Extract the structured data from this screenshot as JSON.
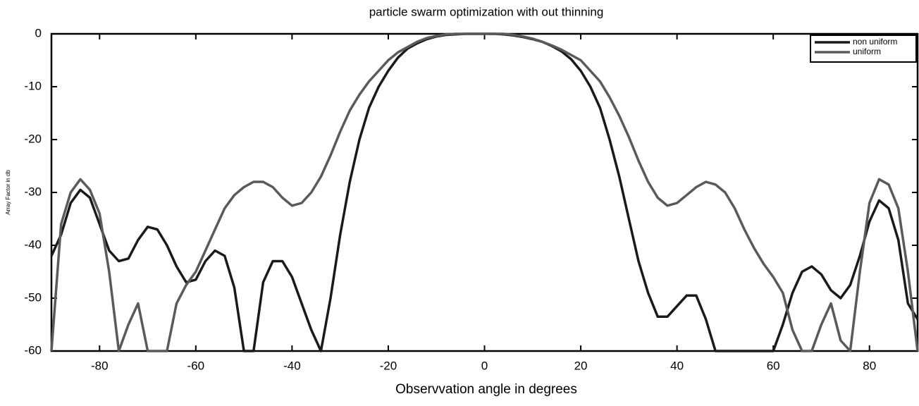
{
  "chart_data": {
    "type": "line",
    "title": "particle swarm optimization with out thinning",
    "x_label": "Observvation angle in degrees",
    "y_label": "Array Factor in db",
    "x": [
      -90,
      -88,
      -86,
      -84,
      -82,
      -80,
      -78,
      -76,
      -74,
      -72,
      -70,
      -68,
      -66,
      -64,
      -62,
      -60,
      -58,
      -56,
      -54,
      -52,
      -50,
      -48,
      -46,
      -44,
      -42,
      -40,
      -38,
      -36,
      -34,
      -32,
      -30,
      -28,
      -26,
      -24,
      -22,
      -20,
      -18,
      -16,
      -14,
      -12,
      -10,
      -8,
      -6,
      -4,
      -2,
      0,
      2,
      4,
      6,
      8,
      10,
      12,
      14,
      16,
      18,
      20,
      22,
      24,
      26,
      28,
      30,
      32,
      34,
      36,
      38,
      40,
      42,
      44,
      46,
      48,
      50,
      52,
      54,
      56,
      58,
      60,
      62,
      64,
      66,
      68,
      70,
      72,
      74,
      76,
      78,
      80,
      82,
      84,
      86,
      88,
      90
    ],
    "series": [
      {
        "name": "non uniform",
        "color": "#1a1a1a",
        "values": [
          -42,
          -38,
          -32,
          -29.5,
          -31,
          -36,
          -41,
          -43,
          -42.5,
          -39,
          -36.5,
          -37,
          -40,
          -44,
          -47,
          -46.5,
          -43,
          -41,
          -42,
          -48,
          -60,
          -60,
          -47,
          -43,
          -43,
          -46,
          -51,
          -56,
          -60,
          -50,
          -38,
          -28,
          -20,
          -14,
          -10,
          -7,
          -4.5,
          -2.8,
          -1.8,
          -1,
          -0.5,
          -0.2,
          -0.1,
          0,
          0,
          0,
          0,
          -0.1,
          -0.3,
          -0.6,
          -1,
          -1.5,
          -2.3,
          -3.3,
          -4.8,
          -7,
          -10,
          -14,
          -20,
          -27,
          -35,
          -43,
          -49,
          -53.5,
          -53.5,
          -51.5,
          -49.5,
          -49.5,
          -54,
          -60,
          -60,
          -60,
          -60,
          -60,
          -60,
          -60,
          -55,
          -49,
          -45,
          -44,
          -45.5,
          -48.5,
          -50,
          -47.5,
          -42,
          -35.5,
          -31.5,
          -33,
          -39,
          -51,
          -54
        ]
      },
      {
        "name": "uniform",
        "color": "#5a5a5a",
        "values": [
          -60,
          -36,
          -30,
          -27.5,
          -29.5,
          -34,
          -45,
          -60,
          -55,
          -51,
          -60,
          -60,
          -60,
          -51,
          -47.5,
          -45,
          -41,
          -37,
          -33,
          -30.5,
          -29,
          -28,
          -28,
          -29,
          -31,
          -32.5,
          -32,
          -30,
          -27,
          -23,
          -18.5,
          -14.5,
          -11.5,
          -9,
          -7,
          -5,
          -3.5,
          -2.5,
          -1.5,
          -0.8,
          -0.4,
          -0.1,
          0,
          0,
          0,
          0,
          0,
          0,
          -0.2,
          -0.5,
          -0.9,
          -1.5,
          -2.2,
          -3,
          -4,
          -5,
          -7,
          -9,
          -12,
          -15.5,
          -19.5,
          -24,
          -28,
          -31,
          -32.5,
          -32,
          -30.5,
          -29,
          -28,
          -28.5,
          -30,
          -33,
          -37,
          -40.5,
          -43.5,
          -46,
          -49,
          -56,
          -60,
          -60,
          -55,
          -51,
          -58,
          -60,
          -45,
          -32,
          -27.5,
          -28.5,
          -33,
          -45,
          -60
        ]
      }
    ],
    "xlim": [
      -90,
      90
    ],
    "xticks": [
      -80,
      -60,
      -40,
      -20,
      0,
      20,
      40,
      60,
      80
    ],
    "ylim": [
      -60,
      0
    ],
    "yticks": [
      0,
      -10,
      -20,
      -30,
      -40,
      -50,
      -60
    ],
    "legend": "upper right"
  }
}
